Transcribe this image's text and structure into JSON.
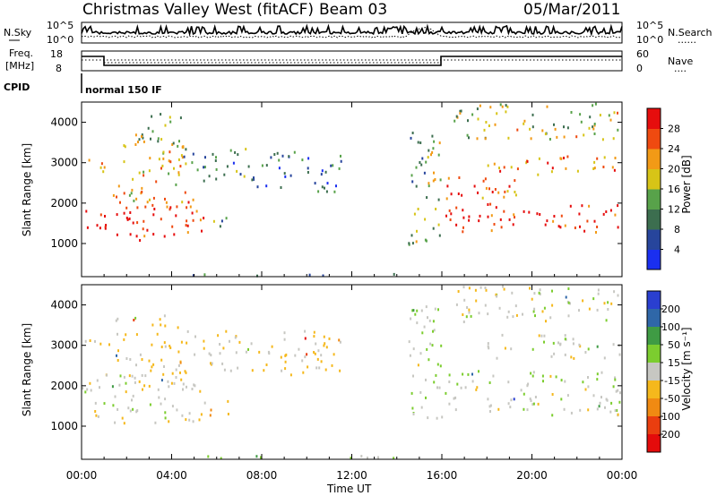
{
  "header": {
    "title": "Christmas Valley West (fitACF)",
    "beam": "Beam 03",
    "date": "05/Mar/2011"
  },
  "top_panel": {
    "left_label_1": "N.Sky",
    "left_ticks": [
      "10^5",
      "10^0"
    ],
    "right_ticks": [
      "10^5",
      "10^0"
    ],
    "right_label": "N.Search",
    "legend_marker": "......"
  },
  "freq_panel": {
    "left_label_1": "Freq.",
    "left_label_2": "[MHz]",
    "left_ticks": [
      "18",
      "8"
    ],
    "right_ticks": [
      "60",
      "0"
    ],
    "right_label": "Nave",
    "legend_marker": "....",
    "cpid_label": "CPID",
    "cpid_text": "normal 150 IF"
  },
  "chart_data": [
    {
      "type": "heatmap",
      "title": "",
      "xlabel": "Time UT",
      "ylabel": "Slant Range [km]",
      "x_ticks": [
        "00:00",
        "04:00",
        "08:00",
        "12:00",
        "16:00",
        "20:00",
        "00:00"
      ],
      "y_ticks": [
        "1000",
        "2000",
        "3000",
        "4000"
      ],
      "xlim_hours": [
        0,
        24
      ],
      "ylim_km": [
        180,
        4500
      ],
      "colorbar": {
        "label": "Power [dB]",
        "ticks": [
          "4",
          "8",
          "12",
          "16",
          "20",
          "24",
          "28"
        ],
        "range": [
          0,
          30
        ],
        "colors": [
          "#1a2ff0",
          "#27459c",
          "#3c6e4f",
          "#58a24a",
          "#d7c417",
          "#f29a16",
          "#ef4a10",
          "#e60d0d"
        ]
      },
      "blobs": [
        {
          "t0": 0.0,
          "t1": 1.0,
          "r0": 1300,
          "r1": 1900,
          "v": 28
        },
        {
          "t0": 1.0,
          "t1": 5.5,
          "r0": 1100,
          "r1": 2300,
          "v": 26
        },
        {
          "t0": 0.0,
          "t1": 1.2,
          "r0": 2800,
          "r1": 3200,
          "v": 22
        },
        {
          "t0": 1.5,
          "t1": 4.5,
          "r0": 2000,
          "r1": 3800,
          "v": 18
        },
        {
          "t0": 2.5,
          "t1": 4.5,
          "r0": 3500,
          "r1": 4300,
          "v": 14
        },
        {
          "t0": 4.5,
          "t1": 7.5,
          "r0": 2500,
          "r1": 3400,
          "v": 10
        },
        {
          "t0": 7.5,
          "t1": 11.5,
          "r0": 2300,
          "r1": 3300,
          "v": 8
        },
        {
          "t0": 5.5,
          "t1": 6.5,
          "r0": 1300,
          "r1": 1700,
          "v": 10
        },
        {
          "t0": 4.0,
          "t1": 14.5,
          "r0": 180,
          "r1": 300,
          "v": 6
        },
        {
          "t0": 14.5,
          "t1": 16.0,
          "r0": 1000,
          "r1": 4000,
          "v": 14
        },
        {
          "t0": 16.0,
          "t1": 24.0,
          "r0": 1300,
          "r1": 2000,
          "v": 28
        },
        {
          "t0": 16.0,
          "t1": 19.5,
          "r0": 2000,
          "r1": 2700,
          "v": 24
        },
        {
          "t0": 18.0,
          "t1": 24.0,
          "r0": 2700,
          "r1": 3200,
          "v": 22
        },
        {
          "t0": 16.5,
          "t1": 24.0,
          "r0": 3600,
          "r1": 4500,
          "v": 16
        }
      ]
    },
    {
      "type": "heatmap",
      "title": "",
      "xlabel": "Time UT",
      "ylabel": "Slant Range [km]",
      "x_ticks": [
        "00:00",
        "04:00",
        "08:00",
        "12:00",
        "16:00",
        "20:00",
        "00:00"
      ],
      "y_ticks": [
        "1000",
        "2000",
        "3000",
        "4000"
      ],
      "xlim_hours": [
        0,
        24
      ],
      "ylim_km": [
        180,
        4500
      ],
      "colorbar": {
        "label": "Velocity [m s⁻¹]",
        "ticks": [
          "200",
          "100",
          "50",
          "15",
          "-15",
          "-50",
          "-100",
          "-200"
        ],
        "range": [
          -250,
          250
        ],
        "colors": [
          "#2a3fd0",
          "#2f67a8",
          "#3f9b44",
          "#7ccd2f",
          "#c7c7c2",
          "#f5b81c",
          "#f08a12",
          "#ea3e0f",
          "#e40b0b"
        ]
      },
      "blobs": [
        {
          "t0": 0.0,
          "t1": 5.5,
          "r0": 1100,
          "r1": 2300,
          "v": 0
        },
        {
          "t0": 0.0,
          "t1": 1.2,
          "r0": 2800,
          "r1": 3200,
          "v": -30
        },
        {
          "t0": 1.5,
          "t1": 4.5,
          "r0": 2000,
          "r1": 3800,
          "v": -40
        },
        {
          "t0": 4.5,
          "t1": 11.5,
          "r0": 2300,
          "r1": 3400,
          "v": -30
        },
        {
          "t0": 5.5,
          "t1": 6.5,
          "r0": 1300,
          "r1": 1700,
          "v": -60
        },
        {
          "t0": 4.0,
          "t1": 14.5,
          "r0": 180,
          "r1": 300,
          "v": 20
        },
        {
          "t0": 14.5,
          "t1": 16.0,
          "r0": 1000,
          "r1": 4000,
          "v": 30
        },
        {
          "t0": 16.0,
          "t1": 24.0,
          "r0": 1300,
          "r1": 2400,
          "v": 0
        },
        {
          "t0": 18.0,
          "t1": 24.0,
          "r0": 2700,
          "r1": 3300,
          "v": 0
        },
        {
          "t0": 16.5,
          "t1": 24.0,
          "r0": 3600,
          "r1": 4500,
          "v": 0
        }
      ]
    }
  ]
}
